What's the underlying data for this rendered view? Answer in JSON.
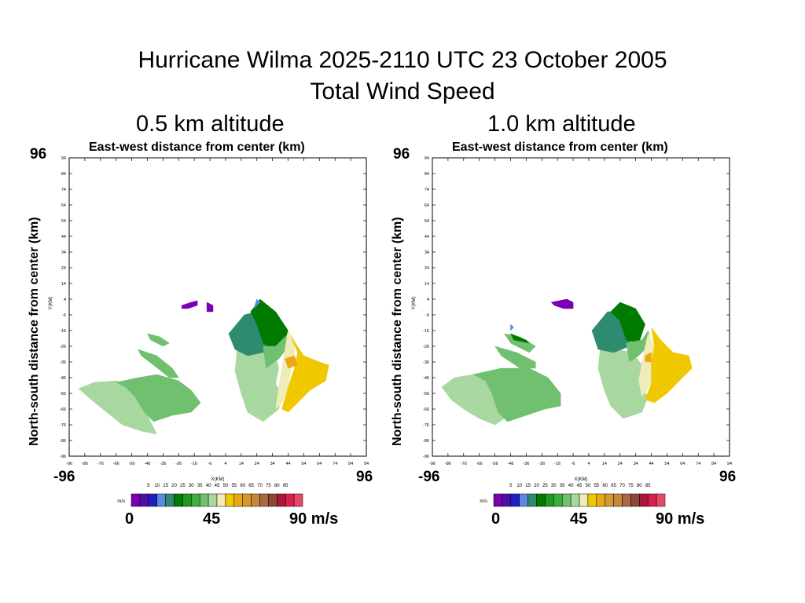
{
  "title": {
    "line1": "Hurricane Wilma  2025-2110 UTC  23 October 2005",
    "line2": "Total Wind Speed"
  },
  "colorbar": {
    "unit_label": "m/s",
    "tick_labels": [
      "5",
      "10",
      "15",
      "20",
      "25",
      "30",
      "35",
      "40",
      "45",
      "50",
      "55",
      "60",
      "65",
      "70",
      "75",
      "80",
      "85"
    ],
    "colors": [
      "#7b00b3",
      "#4b10a8",
      "#2020c0",
      "#5a8ae0",
      "#2e8b70",
      "#007a00",
      "#1f9a1f",
      "#3fae3f",
      "#70c070",
      "#a8d8a0",
      "#f0ecb8",
      "#f0c800",
      "#e8a818",
      "#d4982c",
      "#c4883a",
      "#a86848",
      "#8e4838",
      "#a81838",
      "#d8204a",
      "#e84868"
    ],
    "end_labels": [
      "0",
      "45",
      "90 m/s"
    ]
  },
  "chart_data": [
    {
      "type": "heatmap",
      "panel_title": "0.5 km altitude",
      "xlabel": "East-west distance from center (km)",
      "ylabel": "North-south distance from center (km)",
      "inner_xlabel": "X(KM)",
      "inner_ylabel": "Y(KM)",
      "big_corner_labels": {
        "x_left": "-96",
        "x_right": "96",
        "y_top": "96"
      },
      "xlim": [
        -96,
        94
      ],
      "ylim": [
        -96,
        94
      ],
      "ticks": [
        -96,
        -86,
        -76,
        -66,
        -56,
        -46,
        -36,
        -26,
        -16,
        -6,
        4,
        14,
        24,
        34,
        44,
        54,
        64,
        74,
        84,
        94
      ],
      "ticks_y": [
        94,
        84,
        74,
        64,
        54,
        44,
        34,
        24,
        14,
        4,
        -6,
        -16,
        -26,
        -36,
        -46,
        -56,
        -66,
        -76,
        -86,
        -96
      ],
      "regions": [
        {
          "color": "#a8d8a0",
          "points": [
            [
              -90,
              -53
            ],
            [
              -80,
              -49
            ],
            [
              -66,
              -48
            ],
            [
              -58,
              -50
            ],
            [
              -52,
              -57
            ],
            [
              -48,
              -66
            ],
            [
              -44,
              -74
            ],
            [
              -40,
              -82
            ],
            [
              -50,
              -80
            ],
            [
              -62,
              -76
            ],
            [
              -72,
              -68
            ],
            [
              -82,
              -60
            ]
          ]
        },
        {
          "color": "#70c070",
          "points": [
            [
              -66,
              -49
            ],
            [
              -52,
              -46
            ],
            [
              -40,
              -44
            ],
            [
              -26,
              -48
            ],
            [
              -18,
              -54
            ],
            [
              -12,
              -62
            ],
            [
              -18,
              -68
            ],
            [
              -30,
              -70
            ],
            [
              -42,
              -74
            ],
            [
              -48,
              -68
            ],
            [
              -54,
              -58
            ],
            [
              -60,
              -52
            ]
          ]
        },
        {
          "color": "#70c070",
          "points": [
            [
              -52,
              -28
            ],
            [
              -40,
              -32
            ],
            [
              -30,
              -40
            ],
            [
              -26,
              -46
            ],
            [
              -32,
              -46
            ],
            [
              -42,
              -38
            ],
            [
              -50,
              -32
            ]
          ]
        },
        {
          "color": "#70c070",
          "points": [
            [
              -46,
              -18
            ],
            [
              -38,
              -20
            ],
            [
              -32,
              -24
            ],
            [
              -36,
              -26
            ],
            [
              -44,
              -22
            ]
          ]
        },
        {
          "color": "#7b00b3",
          "points": [
            [
              -24,
              0
            ],
            [
              -18,
              2
            ],
            [
              -14,
              3
            ],
            [
              -14,
              0
            ],
            [
              -20,
              -2
            ],
            [
              -24,
              -2
            ]
          ]
        },
        {
          "color": "#7b00b3",
          "points": [
            [
              -8,
              2
            ],
            [
              -4,
              0
            ],
            [
              -4,
              -4
            ],
            [
              -8,
              -4
            ]
          ]
        },
        {
          "color": "#a8d8a0",
          "points": [
            [
              12,
              -22
            ],
            [
              22,
              -26
            ],
            [
              30,
              -26
            ],
            [
              36,
              -32
            ],
            [
              38,
              -40
            ],
            [
              36,
              -50
            ],
            [
              40,
              -56
            ],
            [
              38,
              -66
            ],
            [
              28,
              -74
            ],
            [
              18,
              -68
            ],
            [
              14,
              -56
            ],
            [
              10,
              -42
            ]
          ]
        },
        {
          "color": "#2e8b70",
          "points": [
            [
              6,
              -18
            ],
            [
              16,
              -6
            ],
            [
              24,
              -4
            ],
            [
              30,
              -12
            ],
            [
              32,
              -22
            ],
            [
              28,
              -30
            ],
            [
              18,
              -32
            ],
            [
              10,
              -28
            ]
          ]
        },
        {
          "color": "#007a00",
          "points": [
            [
              20,
              -4
            ],
            [
              26,
              4
            ],
            [
              36,
              -4
            ],
            [
              44,
              -16
            ],
            [
              42,
              -22
            ],
            [
              34,
              -28
            ],
            [
              28,
              -24
            ],
            [
              24,
              -12
            ]
          ]
        },
        {
          "color": "#70c070",
          "points": [
            [
              28,
              -26
            ],
            [
              36,
              -26
            ],
            [
              44,
              -18
            ],
            [
              46,
              -24
            ],
            [
              38,
              -34
            ],
            [
              30,
              -40
            ]
          ]
        },
        {
          "color": "#5a8ae0",
          "points": [
            [
              22,
              -2
            ],
            [
              24,
              4
            ],
            [
              26,
              2
            ]
          ]
        },
        {
          "color": "#f0ecb8",
          "points": [
            [
              44,
              -16
            ],
            [
              48,
              -22
            ],
            [
              48,
              -32
            ],
            [
              46,
              -40
            ],
            [
              44,
              -52
            ],
            [
              40,
              -62
            ],
            [
              36,
              -66
            ],
            [
              38,
              -52
            ],
            [
              40,
              -40
            ],
            [
              42,
              -28
            ]
          ]
        },
        {
          "color": "#f0c800",
          "points": [
            [
              46,
              -20
            ],
            [
              54,
              -32
            ],
            [
              64,
              -36
            ],
            [
              70,
              -38
            ],
            [
              68,
              -48
            ],
            [
              58,
              -54
            ],
            [
              50,
              -62
            ],
            [
              44,
              -68
            ],
            [
              40,
              -66
            ],
            [
              44,
              -52
            ],
            [
              48,
              -40
            ],
            [
              50,
              -30
            ]
          ]
        },
        {
          "color": "#e8a818",
          "points": [
            [
              42,
              -34
            ],
            [
              48,
              -32
            ],
            [
              50,
              -38
            ],
            [
              44,
              -40
            ]
          ]
        }
      ]
    },
    {
      "type": "heatmap",
      "panel_title": "1.0 km altitude",
      "xlabel": "East-west distance from center (km)",
      "ylabel": "North-south distance from center (km)",
      "inner_xlabel": "X(KM)",
      "inner_ylabel": "Y(KM)",
      "big_corner_labels": {
        "x_left": "-96",
        "x_right": "96",
        "y_top": "96"
      },
      "xlim": [
        -96,
        94
      ],
      "ylim": [
        -96,
        94
      ],
      "ticks": [
        -96,
        -86,
        -76,
        -66,
        -56,
        -46,
        -36,
        -26,
        -16,
        -6,
        4,
        14,
        24,
        34,
        44,
        54,
        64,
        74,
        84,
        94
      ],
      "ticks_y": [
        94,
        84,
        74,
        64,
        54,
        44,
        34,
        24,
        14,
        4,
        -6,
        -16,
        -26,
        -36,
        -46,
        -56,
        -66,
        -76,
        -86,
        -96
      ],
      "regions": [
        {
          "color": "#a8d8a0",
          "points": [
            [
              -90,
              -52
            ],
            [
              -82,
              -46
            ],
            [
              -70,
              -44
            ],
            [
              -62,
              -48
            ],
            [
              -58,
              -56
            ],
            [
              -52,
              -64
            ],
            [
              -50,
              -72
            ],
            [
              -56,
              -76
            ],
            [
              -66,
              -72
            ],
            [
              -76,
              -66
            ],
            [
              -84,
              -60
            ]
          ]
        },
        {
          "color": "#70c070",
          "points": [
            [
              -70,
              -44
            ],
            [
              -52,
              -40
            ],
            [
              -34,
              -40
            ],
            [
              -22,
              -46
            ],
            [
              -14,
              -56
            ],
            [
              -14,
              -64
            ],
            [
              -24,
              -66
            ],
            [
              -36,
              -70
            ],
            [
              -48,
              -74
            ],
            [
              -54,
              -68
            ],
            [
              -58,
              -56
            ],
            [
              -62,
              -48
            ]
          ]
        },
        {
          "color": "#70c070",
          "points": [
            [
              -56,
              -26
            ],
            [
              -42,
              -30
            ],
            [
              -30,
              -36
            ],
            [
              -30,
              -40
            ],
            [
              -40,
              -40
            ],
            [
              -52,
              -32
            ]
          ]
        },
        {
          "color": "#70c070",
          "points": [
            [
              -50,
              -18
            ],
            [
              -40,
              -20
            ],
            [
              -30,
              -26
            ],
            [
              -34,
              -30
            ],
            [
              -46,
              -24
            ]
          ]
        },
        {
          "color": "#007a00",
          "points": [
            [
              -46,
              -18
            ],
            [
              -36,
              -22
            ],
            [
              -34,
              -24
            ],
            [
              -44,
              -22
            ]
          ]
        },
        {
          "color": "#7b00b3",
          "points": [
            [
              -20,
              2
            ],
            [
              -10,
              4
            ],
            [
              -6,
              2
            ],
            [
              -6,
              -2
            ],
            [
              -12,
              -2
            ],
            [
              -18,
              0
            ]
          ]
        },
        {
          "color": "#5a8ae0",
          "points": [
            [
              -46,
              -12
            ],
            [
              -44,
              -14
            ],
            [
              -46,
              -16
            ]
          ]
        },
        {
          "color": "#a8d8a0",
          "points": [
            [
              12,
              -22
            ],
            [
              22,
              -28
            ],
            [
              32,
              -30
            ],
            [
              38,
              -38
            ],
            [
              36,
              -50
            ],
            [
              42,
              -58
            ],
            [
              38,
              -68
            ],
            [
              26,
              -72
            ],
            [
              18,
              -64
            ],
            [
              14,
              -54
            ],
            [
              10,
              -40
            ]
          ]
        },
        {
          "color": "#2e8b70",
          "points": [
            [
              6,
              -16
            ],
            [
              16,
              -4
            ],
            [
              26,
              -4
            ],
            [
              32,
              -14
            ],
            [
              30,
              -26
            ],
            [
              20,
              -30
            ],
            [
              10,
              -28
            ]
          ]
        },
        {
          "color": "#007a00",
          "points": [
            [
              18,
              -4
            ],
            [
              24,
              2
            ],
            [
              34,
              -2
            ],
            [
              40,
              -12
            ],
            [
              36,
              -24
            ],
            [
              28,
              -22
            ],
            [
              24,
              -10
            ]
          ]
        },
        {
          "color": "#70c070",
          "points": [
            [
              28,
              -24
            ],
            [
              38,
              -22
            ],
            [
              42,
              -16
            ],
            [
              44,
              -24
            ],
            [
              36,
              -32
            ],
            [
              30,
              -36
            ]
          ]
        },
        {
          "color": "#f0ecb8",
          "points": [
            [
              42,
              -18
            ],
            [
              46,
              -26
            ],
            [
              44,
              -36
            ],
            [
              44,
              -50
            ],
            [
              38,
              -58
            ],
            [
              36,
              -48
            ],
            [
              38,
              -36
            ],
            [
              40,
              -26
            ]
          ]
        },
        {
          "color": "#f0c800",
          "points": [
            [
              44,
              -14
            ],
            [
              50,
              -22
            ],
            [
              58,
              -30
            ],
            [
              68,
              -32
            ],
            [
              70,
              -40
            ],
            [
              62,
              -48
            ],
            [
              54,
              -56
            ],
            [
              46,
              -62
            ],
            [
              40,
              -60
            ],
            [
              44,
              -50
            ],
            [
              44,
              -36
            ],
            [
              46,
              -26
            ]
          ]
        },
        {
          "color": "#e8a818",
          "points": [
            [
              40,
              -32
            ],
            [
              44,
              -30
            ],
            [
              44,
              -36
            ],
            [
              40,
              -36
            ]
          ]
        }
      ]
    }
  ]
}
